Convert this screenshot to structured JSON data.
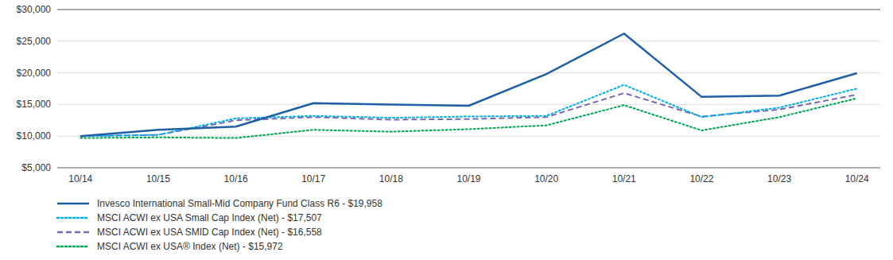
{
  "chart_data": {
    "type": "line",
    "categories": [
      "10/14",
      "10/15",
      "10/16",
      "10/17",
      "10/18",
      "10/19",
      "10/20",
      "10/21",
      "10/22",
      "10/23",
      "10/24"
    ],
    "series": [
      {
        "name": "Invesco International Small-Mid Company Fund Class R6 - $19,958",
        "color": "#1F5FA6",
        "line_style": "solid",
        "values": [
          10000,
          11000,
          11500,
          15200,
          15000,
          14800,
          19800,
          26200,
          16200,
          16400,
          19958
        ]
      },
      {
        "name": "MSCI ACWI ex USA Small Cap Index (Net) - $17,507",
        "color": "#00AEEF",
        "line_style": "dotted",
        "values": [
          10000,
          10200,
          12800,
          13200,
          12900,
          13100,
          13200,
          18100,
          13000,
          14500,
          17507
        ]
      },
      {
        "name": "MSCI ACWI ex USA SMID Cap Index (Net) - $16,558",
        "color": "#7B68B5",
        "line_style": "dashed",
        "values": [
          10000,
          10200,
          12500,
          13000,
          12600,
          12700,
          13000,
          16800,
          13100,
          14200,
          16558
        ]
      },
      {
        "name": "MSCI ACWI ex USA® Index (Net) - $15,972",
        "color": "#00A651",
        "line_style": "dotted",
        "values": [
          9700,
          9800,
          9700,
          11000,
          10700,
          11100,
          11700,
          14900,
          10900,
          13000,
          15972
        ]
      }
    ],
    "ylim": [
      5000,
      30000
    ],
    "yticks": [
      {
        "value": 5000,
        "label": "$5,000"
      },
      {
        "value": 10000,
        "label": "$10,000"
      },
      {
        "value": 15000,
        "label": "$15,000"
      },
      {
        "value": 20000,
        "label": "$20,000"
      },
      {
        "value": 25000,
        "label": "$25,000"
      },
      {
        "value": 30000,
        "label": "$30,000"
      }
    ],
    "grid": true,
    "legend": "bottom"
  }
}
